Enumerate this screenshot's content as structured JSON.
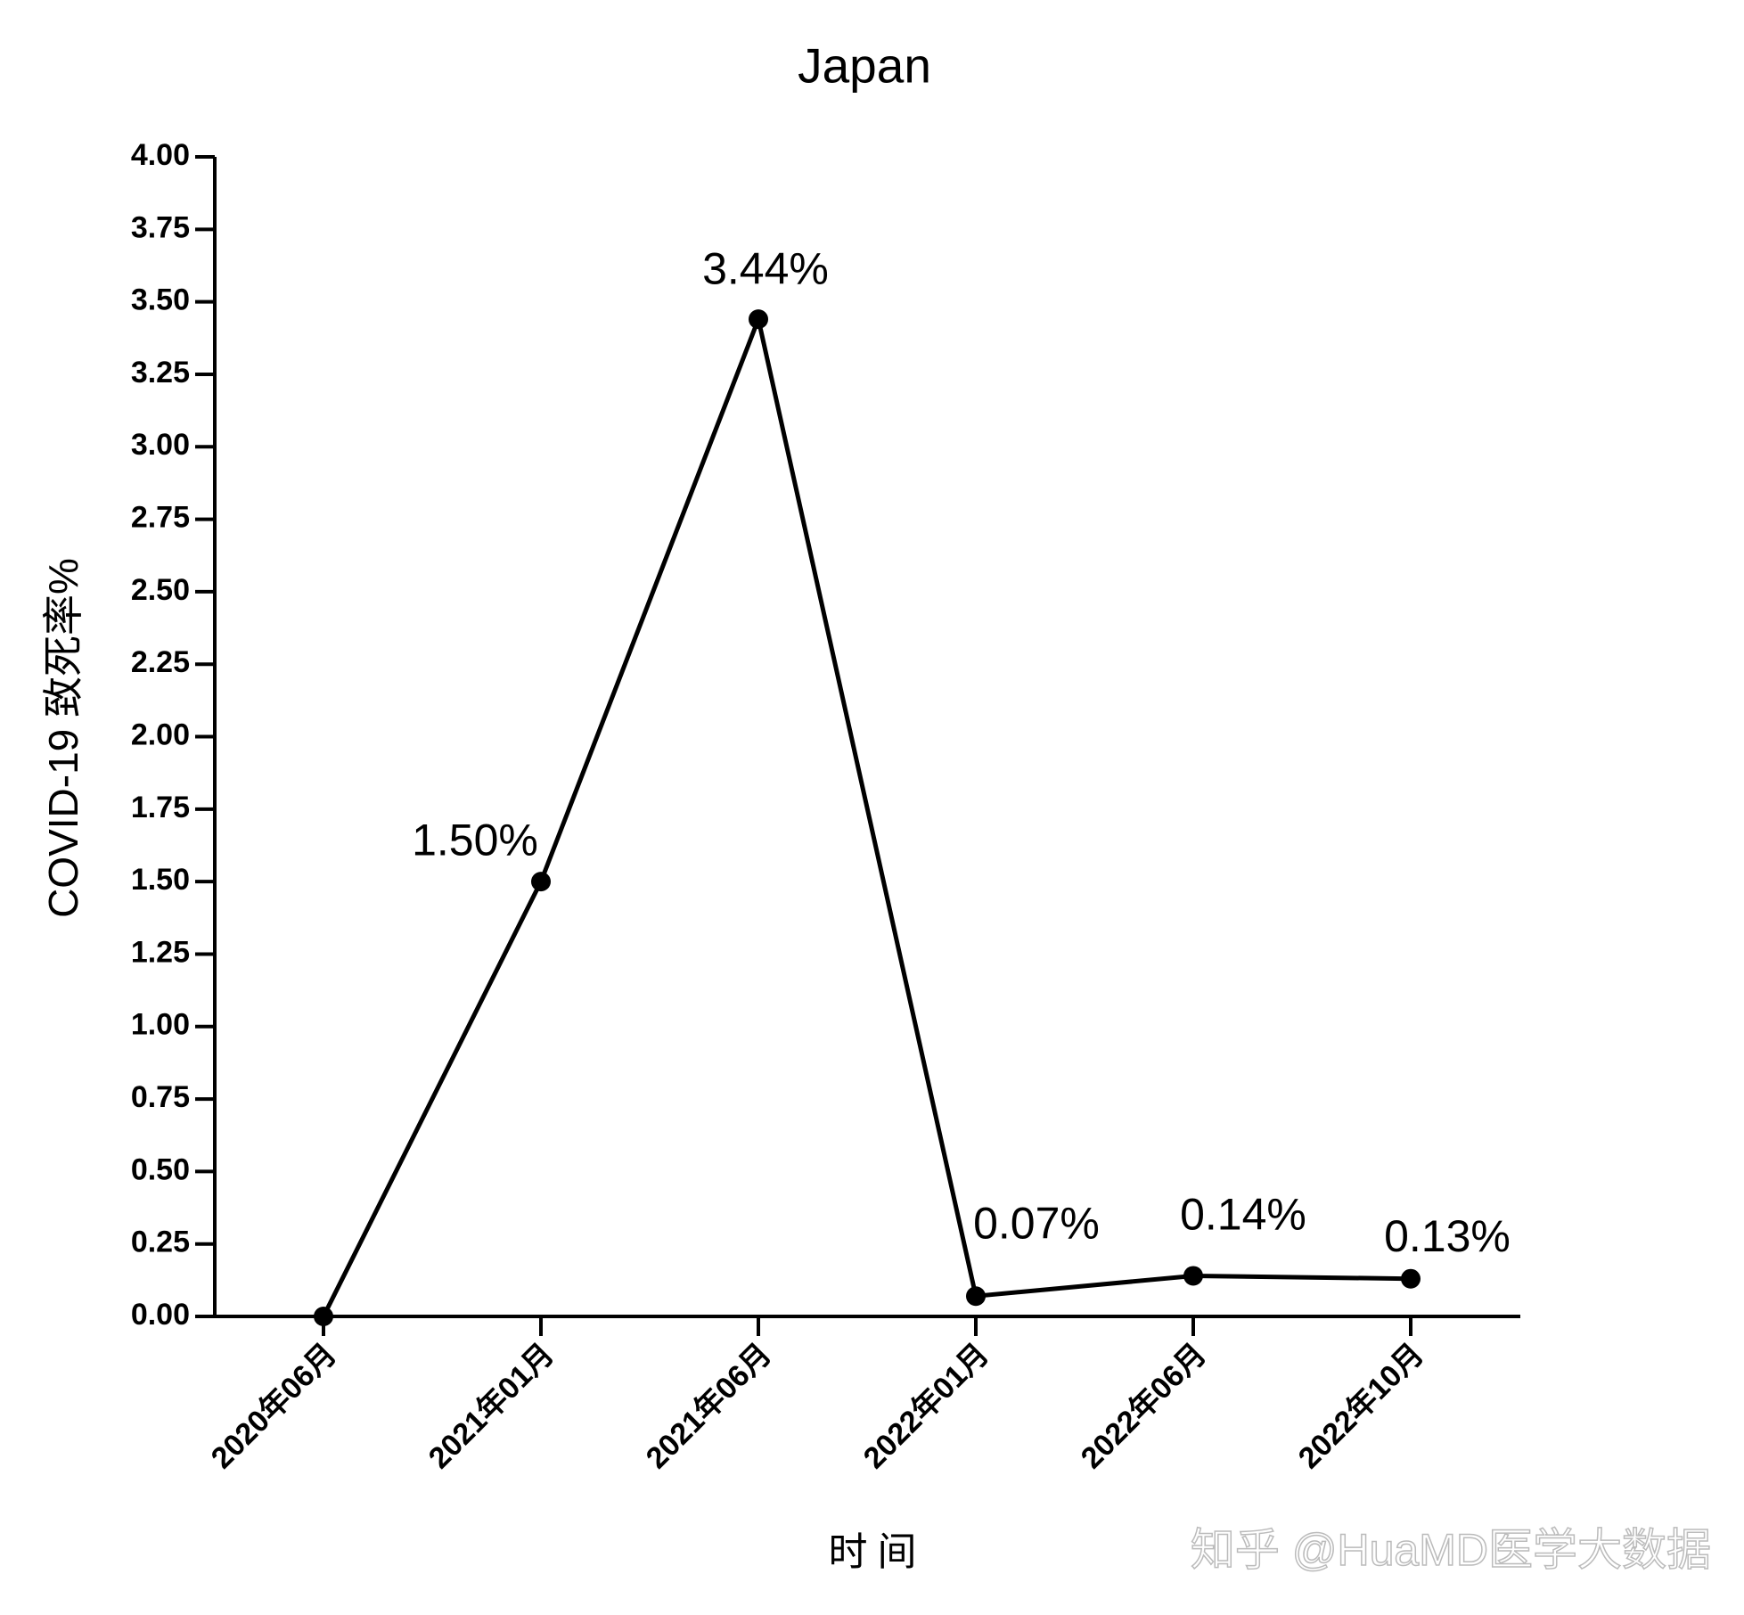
{
  "chart_data": {
    "type": "line",
    "title": "Japan",
    "x_label": "时 间",
    "y_label": "COVID-19 致死率%",
    "categories": [
      "2020年06月",
      "2021年01月",
      "2021年06月",
      "2022年01月",
      "2022年06月",
      "2022年10月"
    ],
    "series": [
      {
        "name": "Japan",
        "color": "#000000",
        "values": [
          0,
          1.5,
          3.44,
          0.07,
          0.14,
          0.13
        ],
        "value_labels": [
          null,
          "1.50%",
          "3.44%",
          "0.07%",
          "0.14%",
          "0.13%"
        ]
      }
    ],
    "ylim": [
      0,
      4
    ],
    "yticks": [
      {
        "value": 0,
        "label": "0.00"
      },
      {
        "value": 0.25,
        "label": "0.25"
      },
      {
        "value": 0.5,
        "label": "0.50"
      },
      {
        "value": 0.75,
        "label": "0.75"
      },
      {
        "value": 1,
        "label": "1.00"
      },
      {
        "value": 1.25,
        "label": "1.25"
      },
      {
        "value": 1.5,
        "label": "1.50"
      },
      {
        "value": 1.75,
        "label": "1.75"
      },
      {
        "value": 2,
        "label": "2.00"
      },
      {
        "value": 2.25,
        "label": "2.25"
      },
      {
        "value": 2.5,
        "label": "2.50"
      },
      {
        "value": 2.75,
        "label": "2.75"
      },
      {
        "value": 3,
        "label": "3.00"
      },
      {
        "value": 3.25,
        "label": "3.25"
      },
      {
        "value": 3.5,
        "label": "3.50"
      },
      {
        "value": 3.75,
        "label": "3.75"
      },
      {
        "value": 4,
        "label": "4.00"
      }
    ],
    "grid": false,
    "watermark": "知乎 @HuaMD医学大数据"
  }
}
